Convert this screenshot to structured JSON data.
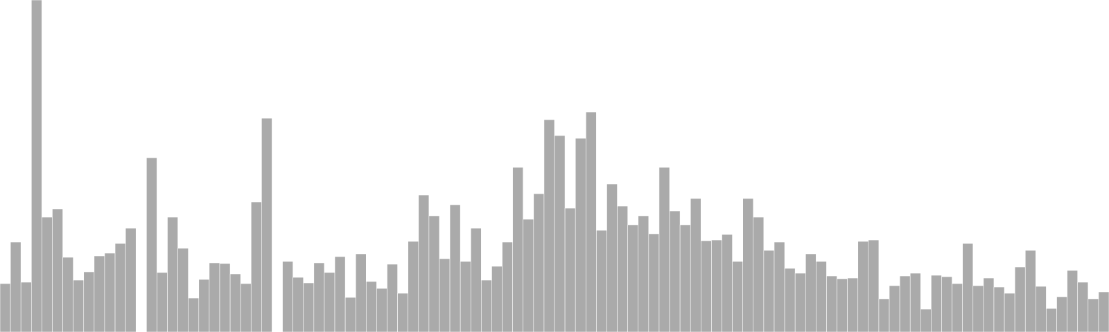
{
  "chart_data": {
    "type": "bar",
    "title": "",
    "xlabel": "",
    "ylabel": "",
    "ylim": [
      0,
      480
    ],
    "grid": false,
    "legend": "none",
    "bar_color": "#aaaaaa",
    "background": "#ffffff",
    "values": [
      70,
      130,
      72,
      480,
      166,
      178,
      108,
      75,
      87,
      110,
      114,
      128,
      150,
      null,
      252,
      86,
      166,
      121,
      49,
      76,
      100,
      99,
      84,
      70,
      188,
      309,
      null,
      102,
      79,
      71,
      100,
      86,
      109,
      50,
      113,
      73,
      63,
      98,
      56,
      131,
      198,
      168,
      106,
      184,
      102,
      150,
      75,
      95,
      130,
      238,
      163,
      200,
      307,
      284,
      179,
      280,
      318,
      147,
      214,
      182,
      155,
      168,
      142,
      238,
      175,
      155,
      193,
      132,
      133,
      141,
      102,
      193,
      166,
      118,
      130,
      92,
      85,
      113,
      102,
      81,
      77,
      78,
      131,
      133,
      48,
      67,
      81,
      85,
      33,
      82,
      80,
      70,
      128,
      67,
      78,
      65,
      56,
      94,
      118,
      66,
      34,
      51,
      89,
      72,
      48,
      58
    ]
  }
}
